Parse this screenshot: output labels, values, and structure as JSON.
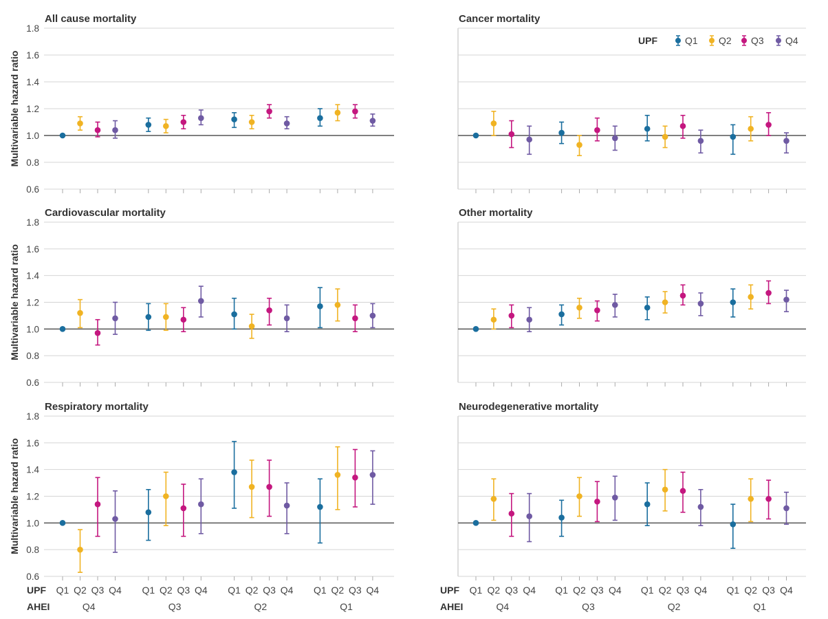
{
  "chart_data": {
    "type": "scatter",
    "subtype": "point-with-error-bars",
    "y_axis_label": "Multivariable hazard ratio",
    "y_ticks": [
      0.6,
      0.8,
      1.0,
      1.2,
      1.4,
      1.6,
      1.8
    ],
    "ylim": [
      0.6,
      1.8
    ],
    "reference_line": 1.0,
    "grid": "horizontal",
    "legend": {
      "title": "UPF",
      "placement": "top-right of Cancer mortality panel",
      "entries": [
        "Q1",
        "Q2",
        "Q3",
        "Q4"
      ]
    },
    "colors": {
      "Q1": "#1a6e9e",
      "Q2": "#f0b323",
      "Q3": "#c4177f",
      "Q4": "#6f5aa3"
    },
    "x_axis": {
      "row1_label": "UPF",
      "row2_label": "AHEI",
      "upf_quartiles": [
        "Q1",
        "Q2",
        "Q3",
        "Q4"
      ],
      "ahei_groups": [
        "Q4",
        "Q3",
        "Q2",
        "Q1"
      ]
    },
    "panels": [
      {
        "title": "All cause mortality",
        "hr": [
          1.0,
          1.09,
          1.04,
          1.04,
          1.08,
          1.07,
          1.1,
          1.13,
          1.12,
          1.1,
          1.18,
          1.09,
          1.13,
          1.17,
          1.18,
          1.11
        ],
        "low": [
          1.0,
          1.04,
          0.99,
          0.98,
          1.03,
          1.02,
          1.05,
          1.08,
          1.06,
          1.05,
          1.13,
          1.05,
          1.07,
          1.11,
          1.13,
          1.07
        ],
        "high": [
          1.0,
          1.14,
          1.1,
          1.11,
          1.13,
          1.12,
          1.15,
          1.19,
          1.17,
          1.15,
          1.23,
          1.14,
          1.2,
          1.23,
          1.23,
          1.16
        ]
      },
      {
        "title": "Cancer mortality",
        "hr": [
          1.0,
          1.09,
          1.01,
          0.97,
          1.02,
          0.93,
          1.04,
          0.98,
          1.05,
          0.99,
          1.07,
          0.96,
          0.99,
          1.05,
          1.08,
          0.96
        ],
        "low": [
          1.0,
          1.0,
          0.91,
          0.86,
          0.94,
          0.85,
          0.96,
          0.89,
          0.96,
          0.91,
          0.98,
          0.87,
          0.86,
          0.96,
          1.0,
          0.87
        ],
        "high": [
          1.0,
          1.18,
          1.11,
          1.07,
          1.1,
          1.0,
          1.13,
          1.07,
          1.15,
          1.07,
          1.15,
          1.04,
          1.08,
          1.14,
          1.17,
          1.02
        ]
      },
      {
        "title": "Cardiovascular mortality",
        "hr": [
          1.0,
          1.12,
          0.97,
          1.08,
          1.09,
          1.09,
          1.07,
          1.21,
          1.11,
          1.02,
          1.14,
          1.08,
          1.17,
          1.18,
          1.08,
          1.1
        ],
        "low": [
          1.0,
          1.01,
          0.88,
          0.96,
          0.99,
          0.99,
          0.98,
          1.09,
          1.0,
          0.93,
          1.03,
          0.98,
          1.01,
          1.06,
          0.98,
          1.01
        ],
        "high": [
          1.0,
          1.22,
          1.07,
          1.2,
          1.19,
          1.19,
          1.16,
          1.32,
          1.23,
          1.11,
          1.23,
          1.18,
          1.31,
          1.3,
          1.18,
          1.19
        ]
      },
      {
        "title": "Other mortality",
        "hr": [
          1.0,
          1.07,
          1.1,
          1.07,
          1.11,
          1.16,
          1.14,
          1.18,
          1.16,
          1.2,
          1.25,
          1.19,
          1.2,
          1.24,
          1.27,
          1.22
        ],
        "low": [
          1.0,
          1.0,
          1.01,
          0.98,
          1.03,
          1.08,
          1.06,
          1.09,
          1.07,
          1.12,
          1.18,
          1.1,
          1.09,
          1.15,
          1.19,
          1.13
        ],
        "high": [
          1.0,
          1.15,
          1.18,
          1.16,
          1.18,
          1.23,
          1.21,
          1.26,
          1.24,
          1.28,
          1.33,
          1.27,
          1.3,
          1.33,
          1.36,
          1.29
        ]
      },
      {
        "title": "Respiratory mortality",
        "hr": [
          1.0,
          0.8,
          1.14,
          1.03,
          1.08,
          1.2,
          1.11,
          1.14,
          1.38,
          1.27,
          1.27,
          1.13,
          1.12,
          1.36,
          1.34,
          1.36
        ],
        "low": [
          1.0,
          0.63,
          0.9,
          0.78,
          0.87,
          0.98,
          0.9,
          0.92,
          1.11,
          1.04,
          1.05,
          0.92,
          0.85,
          1.1,
          1.12,
          1.14
        ],
        "high": [
          1.0,
          0.95,
          1.34,
          1.24,
          1.25,
          1.38,
          1.29,
          1.33,
          1.61,
          1.47,
          1.47,
          1.3,
          1.33,
          1.57,
          1.55,
          1.54
        ]
      },
      {
        "title": "Neurodegenerative mortality",
        "hr": [
          1.0,
          1.18,
          1.07,
          1.05,
          1.04,
          1.2,
          1.16,
          1.19,
          1.14,
          1.25,
          1.24,
          1.12,
          0.99,
          1.18,
          1.18,
          1.11
        ],
        "low": [
          1.0,
          1.02,
          0.9,
          0.86,
          0.9,
          1.05,
          1.01,
          1.02,
          0.98,
          1.09,
          1.08,
          0.98,
          0.81,
          1.01,
          1.03,
          0.99
        ],
        "high": [
          1.0,
          1.33,
          1.22,
          1.22,
          1.17,
          1.34,
          1.31,
          1.35,
          1.3,
          1.4,
          1.38,
          1.25,
          1.14,
          1.33,
          1.32,
          1.23
        ]
      }
    ]
  }
}
